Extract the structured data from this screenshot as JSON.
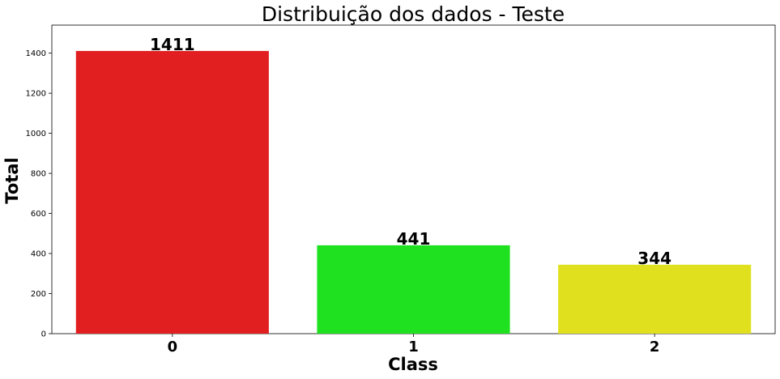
{
  "chart_data": {
    "type": "bar",
    "title": "Distribuição dos dados - Teste",
    "xlabel": "Class",
    "ylabel": "Total",
    "categories": [
      "0",
      "1",
      "2"
    ],
    "values": [
      1411,
      441,
      344
    ],
    "data_labels": [
      "1411",
      "441",
      "344"
    ],
    "colors": [
      "#e11f20",
      "#1fe11f",
      "#e0e01f"
    ],
    "yticks": [
      0,
      200,
      400,
      600,
      800,
      1000,
      1200,
      1400
    ],
    "ylim": [
      0,
      1540
    ],
    "grid": false,
    "legend": "none"
  }
}
